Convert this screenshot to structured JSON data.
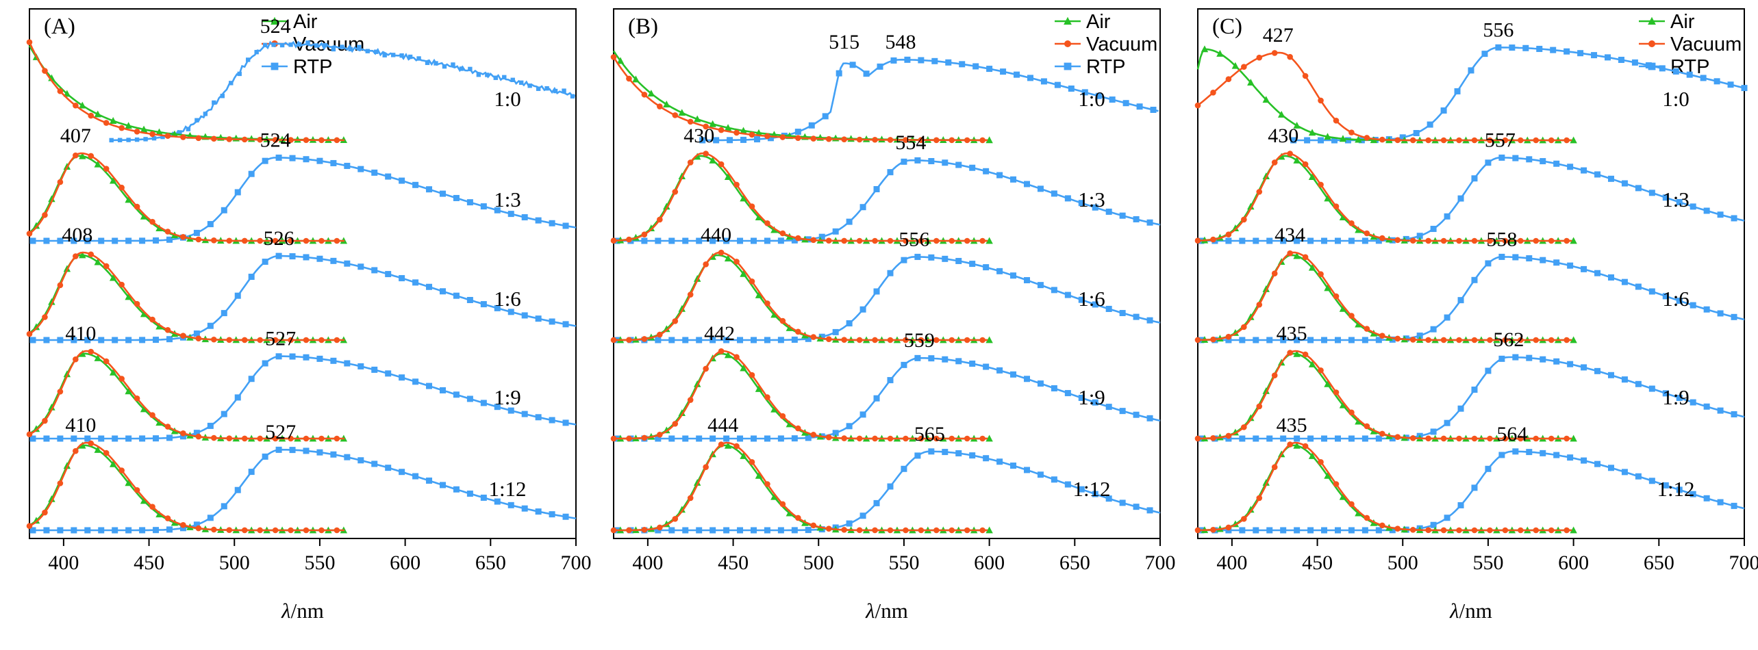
{
  "figure": {
    "xlabel": "λ/nm",
    "colors": {
      "air": "#27c127",
      "vacuum": "#f5541c",
      "rtp": "#42a0f5",
      "axis": "#000000"
    },
    "legend_labels": [
      "Air",
      "Vacuum",
      "RTP"
    ]
  },
  "chart_data": [
    {
      "type": "line",
      "id": "A",
      "panel_label": "(A)",
      "xlabel": "λ/nm",
      "x_range": [
        380,
        700
      ],
      "x_ticks": [
        400,
        450,
        500,
        550,
        600,
        650,
        700
      ],
      "legend": {
        "x": 340,
        "entries": [
          {
            "label": "Air",
            "series": "air"
          },
          {
            "label": "Vacuum",
            "series": "vac"
          },
          {
            "label": "RTP",
            "series": "rtp"
          }
        ]
      },
      "rows": [
        {
          "ratio": "1:0",
          "series": {
            "air": {
              "kind": "edge",
              "h": 1.08,
              "tau": 31,
              "end": 565
            },
            "vac": {
              "kind": "edge",
              "h": 1.12,
              "tau": 26,
              "end": 565
            },
            "rtp": {
              "kind": "gauss",
              "p": 524,
              "wl": 36,
              "wr": 200,
              "h": 1.1,
              "start": 428,
              "noisy": true
            }
          },
          "annotations": [
            {
              "text": "524",
              "nm": 524,
              "series": "rtp"
            }
          ]
        },
        {
          "ratio": "1:3",
          "series": {
            "air": {
              "kind": "gauss",
              "p": 409,
              "wl": 19,
              "wr": 34,
              "h": 0.97,
              "end": 565
            },
            "vac": {
              "kind": "gauss",
              "p": 410,
              "wl": 19,
              "wr": 34,
              "h": 1.0,
              "end": 565
            },
            "rtp": {
              "kind": "gauss",
              "p": 524,
              "wl": 30,
              "wr": 130,
              "h": 0.95,
              "start": 382
            }
          },
          "annotations": [
            {
              "text": "407",
              "nm": 407,
              "series": "vac"
            },
            {
              "text": "524",
              "nm": 524,
              "series": "rtp"
            }
          ]
        },
        {
          "ratio": "1:6",
          "series": {
            "air": {
              "kind": "gauss",
              "p": 410,
              "wl": 19,
              "wr": 34,
              "h": 0.97,
              "end": 565
            },
            "vac": {
              "kind": "gauss",
              "p": 411,
              "wl": 19,
              "wr": 34,
              "h": 1.0,
              "end": 565
            },
            "rtp": {
              "kind": "gauss",
              "p": 526,
              "wl": 30,
              "wr": 130,
              "h": 0.96,
              "start": 382
            }
          },
          "annotations": [
            {
              "text": "408",
              "nm": 408,
              "series": "vac"
            },
            {
              "text": "526",
              "nm": 526,
              "series": "rtp"
            }
          ]
        },
        {
          "ratio": "1:9",
          "series": {
            "air": {
              "kind": "gauss",
              "p": 412,
              "wl": 19,
              "wr": 34,
              "h": 0.97,
              "end": 565
            },
            "vac": {
              "kind": "gauss",
              "p": 413,
              "wl": 19,
              "wr": 34,
              "h": 1.0,
              "end": 565
            },
            "rtp": {
              "kind": "gauss",
              "p": 527,
              "wl": 30,
              "wr": 130,
              "h": 0.94,
              "start": 382
            }
          },
          "annotations": [
            {
              "text": "410",
              "nm": 410,
              "series": "vac"
            },
            {
              "text": "527",
              "nm": 527,
              "series": "rtp"
            }
          ]
        },
        {
          "ratio": "1:12",
          "series": {
            "air": {
              "kind": "gauss",
              "p": 412,
              "wl": 19,
              "wr": 34,
              "h": 0.97,
              "end": 565
            },
            "vac": {
              "kind": "gauss",
              "p": 413,
              "wl": 19,
              "wr": 34,
              "h": 1.0,
              "end": 565
            },
            "rtp": {
              "kind": "gauss",
              "p": 527,
              "wl": 30,
              "wr": 125,
              "h": 0.92,
              "start": 382
            }
          },
          "annotations": [
            {
              "text": "410",
              "nm": 410,
              "series": "vac"
            },
            {
              "text": "527",
              "nm": 527,
              "series": "rtp"
            }
          ]
        }
      ]
    },
    {
      "type": "line",
      "id": "B",
      "panel_label": "(B)",
      "xlabel": "λ/nm",
      "x_range": [
        380,
        700
      ],
      "x_ticks": [
        400,
        450,
        500,
        550,
        600,
        650,
        700
      ],
      "legend": {
        "x": 645,
        "entries": [
          {
            "label": "Air",
            "series": "air"
          },
          {
            "label": "Vacuum",
            "series": "vac"
          },
          {
            "label": "RTP",
            "series": "rtp"
          }
        ]
      },
      "rows": [
        {
          "ratio": "1:0",
          "series": {
            "air": {
              "kind": "edge",
              "h": 1.02,
              "tau": 34,
              "end": 600
            },
            "vac": {
              "kind": "edge",
              "h": 0.95,
              "tau": 30,
              "end": 600
            },
            "rtp": {
              "kind": "max2",
              "start": 432,
              "g": [
                {
                  "p": 515,
                  "wl": 8,
                  "wr": 34,
                  "h": 0.88
                },
                {
                  "p": 548,
                  "wl": 40,
                  "wr": 150,
                  "h": 0.92
                }
              ]
            }
          },
          "annotations": [
            {
              "text": "515",
              "nm": 515,
              "series": "rtp"
            },
            {
              "text": "548",
              "nm": 548,
              "series": "rtp"
            }
          ]
        },
        {
          "ratio": "1:3",
          "series": {
            "air": {
              "kind": "gauss",
              "p": 431,
              "wl": 21,
              "wr": 30,
              "h": 0.97,
              "end": 600
            },
            "vac": {
              "kind": "gauss",
              "p": 432,
              "wl": 21,
              "wr": 30,
              "h": 1.0,
              "end": 600
            },
            "rtp": {
              "kind": "gauss",
              "p": 554,
              "wl": 30,
              "wr": 115,
              "h": 0.92,
              "start": 382
            }
          },
          "annotations": [
            {
              "text": "430",
              "nm": 430,
              "series": "vac"
            },
            {
              "text": "554",
              "nm": 554,
              "series": "rtp"
            }
          ]
        },
        {
          "ratio": "1:6",
          "series": {
            "air": {
              "kind": "gauss",
              "p": 441,
              "wl": 21,
              "wr": 30,
              "h": 0.97,
              "end": 600
            },
            "vac": {
              "kind": "gauss",
              "p": 442,
              "wl": 21,
              "wr": 30,
              "h": 1.0,
              "end": 600
            },
            "rtp": {
              "kind": "gauss",
              "p": 556,
              "wl": 30,
              "wr": 115,
              "h": 0.95,
              "start": 382
            }
          },
          "annotations": [
            {
              "text": "440",
              "nm": 440,
              "series": "vac"
            },
            {
              "text": "556",
              "nm": 556,
              "series": "rtp"
            }
          ]
        },
        {
          "ratio": "1:9",
          "series": {
            "air": {
              "kind": "gauss",
              "p": 443,
              "wl": 21,
              "wr": 30,
              "h": 0.97,
              "end": 600
            },
            "vac": {
              "kind": "gauss",
              "p": 444,
              "wl": 21,
              "wr": 30,
              "h": 1.0,
              "end": 600
            },
            "rtp": {
              "kind": "gauss",
              "p": 559,
              "wl": 30,
              "wr": 115,
              "h": 0.92,
              "start": 382
            }
          },
          "annotations": [
            {
              "text": "442",
              "nm": 442,
              "series": "vac"
            },
            {
              "text": "559",
              "nm": 559,
              "series": "rtp"
            }
          ]
        },
        {
          "ratio": "1:12",
          "series": {
            "air": {
              "kind": "gauss",
              "p": 445,
              "wl": 21,
              "wr": 30,
              "h": 0.97,
              "end": 600
            },
            "vac": {
              "kind": "gauss",
              "p": 446,
              "wl": 21,
              "wr": 30,
              "h": 1.0,
              "end": 600
            },
            "rtp": {
              "kind": "gauss",
              "p": 565,
              "wl": 30,
              "wr": 110,
              "h": 0.9,
              "start": 382
            }
          },
          "annotations": [
            {
              "text": "444",
              "nm": 444,
              "series": "vac"
            },
            {
              "text": "565",
              "nm": 565,
              "series": "rtp"
            }
          ]
        }
      ]
    },
    {
      "type": "line",
      "id": "C",
      "panel_label": "(C)",
      "xlabel": "λ/nm",
      "x_range": [
        380,
        700
      ],
      "x_ticks": [
        400,
        450,
        500,
        550,
        600,
        650,
        700
      ],
      "legend": {
        "x": 645,
        "entries": [
          {
            "label": "Air",
            "series": "air"
          },
          {
            "label": "Vacuum",
            "series": "vac"
          },
          {
            "label": "RTP",
            "series": "rtp"
          }
        ]
      },
      "rows": [
        {
          "ratio": "1:0",
          "series": {
            "air": {
              "kind": "gauss",
              "p": 384,
              "wl": 8,
              "wr": 40,
              "h": 1.04,
              "end": 600
            },
            "vac": {
              "kind": "gauss",
              "p": 428,
              "wl": 50,
              "wr": 27,
              "h": 1.0,
              "end": 600
            },
            "rtp": {
              "kind": "gauss",
              "p": 556,
              "wl": 30,
              "wr": 190,
              "h": 1.06,
              "start": 436
            }
          },
          "annotations": [
            {
              "text": "427",
              "nm": 427,
              "series": "vac"
            },
            {
              "text": "556",
              "nm": 556,
              "series": "rtp"
            }
          ]
        },
        {
          "ratio": "1:3",
          "series": {
            "air": {
              "kind": "gauss",
              "p": 431,
              "wl": 21,
              "wr": 30,
              "h": 0.97,
              "end": 600
            },
            "vac": {
              "kind": "gauss",
              "p": 432,
              "wl": 21,
              "wr": 30,
              "h": 1.0,
              "end": 600
            },
            "rtp": {
              "kind": "gauss",
              "p": 557,
              "wl": 28,
              "wr": 120,
              "h": 0.95,
              "start": 382
            }
          },
          "annotations": [
            {
              "text": "430",
              "nm": 430,
              "series": "vac"
            },
            {
              "text": "557",
              "nm": 557,
              "series": "rtp"
            }
          ]
        },
        {
          "ratio": "1:6",
          "series": {
            "air": {
              "kind": "gauss",
              "p": 435,
              "wl": 21,
              "wr": 30,
              "h": 0.97,
              "end": 600
            },
            "vac": {
              "kind": "gauss",
              "p": 436,
              "wl": 21,
              "wr": 30,
              "h": 1.0,
              "end": 600
            },
            "rtp": {
              "kind": "gauss",
              "p": 558,
              "wl": 28,
              "wr": 120,
              "h": 0.95,
              "start": 382
            }
          },
          "annotations": [
            {
              "text": "434",
              "nm": 434,
              "series": "vac"
            },
            {
              "text": "558",
              "nm": 558,
              "series": "rtp"
            }
          ]
        },
        {
          "ratio": "1:9",
          "series": {
            "air": {
              "kind": "gauss",
              "p": 436,
              "wl": 21,
              "wr": 30,
              "h": 0.97,
              "end": 600
            },
            "vac": {
              "kind": "gauss",
              "p": 437,
              "wl": 21,
              "wr": 30,
              "h": 1.0,
              "end": 600
            },
            "rtp": {
              "kind": "gauss",
              "p": 562,
              "wl": 28,
              "wr": 120,
              "h": 0.93,
              "start": 382
            }
          },
          "annotations": [
            {
              "text": "435",
              "nm": 435,
              "series": "vac"
            },
            {
              "text": "562",
              "nm": 562,
              "series": "rtp"
            }
          ]
        },
        {
          "ratio": "1:12",
          "series": {
            "air": {
              "kind": "gauss",
              "p": 436,
              "wl": 21,
              "wr": 30,
              "h": 0.97,
              "end": 600
            },
            "vac": {
              "kind": "gauss",
              "p": 437,
              "wl": 21,
              "wr": 30,
              "h": 1.0,
              "end": 600
            },
            "rtp": {
              "kind": "gauss",
              "p": 564,
              "wl": 28,
              "wr": 120,
              "h": 0.9,
              "start": 382
            }
          },
          "annotations": [
            {
              "text": "435",
              "nm": 435,
              "series": "vac"
            },
            {
              "text": "564",
              "nm": 564,
              "series": "rtp"
            }
          ]
        }
      ]
    }
  ]
}
